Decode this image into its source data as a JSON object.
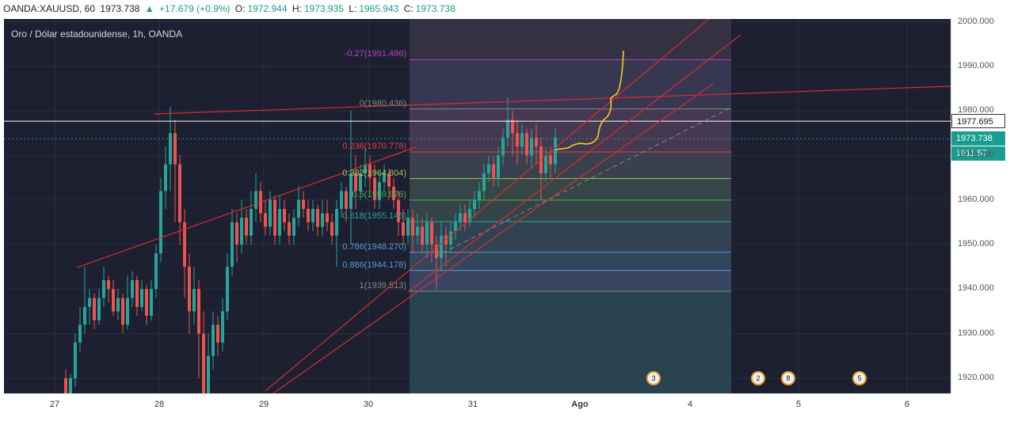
{
  "header": {
    "symbol": "OANDA:XAUUSD, 60",
    "last": "1973.738",
    "change": "+17.679 (+0.9%)",
    "open_label": "O:",
    "open": "1972.944",
    "high_label": "H:",
    "high": "1973.935",
    "low_label": "L:",
    "low": "1965.943",
    "close_label": "C:",
    "close": "1973.738"
  },
  "chart": {
    "legend": "Oro / Dólar estadounidense, 1h, OANDA",
    "colors": {
      "background": "#1c2030",
      "up": "#26a69a",
      "down": "#ef5350",
      "trendline": "#d32f2f",
      "projection": "#f5d020"
    },
    "y_ticks": [
      "2000.000",
      "1990.000",
      "1980.000",
      "1970.000",
      "1960.000",
      "1950.000",
      "1940.000",
      "1930.000",
      "1920.000"
    ],
    "x_ticks": [
      {
        "label": "27"
      },
      {
        "label": "28"
      },
      {
        "label": "29"
      },
      {
        "label": "30"
      },
      {
        "label": "31"
      },
      {
        "label": "Ago",
        "bold": true
      },
      {
        "label": "4"
      },
      {
        "label": "5"
      },
      {
        "label": "6"
      }
    ],
    "price_tags": {
      "hline_price": "1977.695",
      "last_price": "1973.738",
      "countdown_prefix": "19",
      "countdown": "11:57"
    },
    "fib_levels": [
      {
        "label": "-0.27(1991.486)",
        "price": 1991.486,
        "color": "#b044c0"
      },
      {
        "label": "0(1980.436)",
        "price": 1980.436,
        "color": "#888888"
      },
      {
        "label": "0.236(1970.778)",
        "price": 1970.778,
        "color": "#e04040"
      },
      {
        "label": "0.382(1964.804)",
        "price": 1964.804,
        "color": "#a0c060"
      },
      {
        "label": "0.5(1959.976)",
        "price": 1959.976,
        "color": "#4caf50"
      },
      {
        "label": "0.618(1955.146)",
        "price": 1955.146,
        "color": "#26a69a"
      },
      {
        "label": "0.786(1948.270)",
        "price": 1948.27,
        "color": "#5b9bd5"
      },
      {
        "label": "0.886(1944.178)",
        "price": 1944.178,
        "color": "#5b9bd5"
      },
      {
        "label": "1(1939.513)",
        "price": 1939.513,
        "color": "#888888"
      }
    ],
    "events": [
      {
        "label": "3"
      },
      {
        "label": "2"
      },
      {
        "label": "8"
      },
      {
        "label": "5"
      }
    ]
  }
}
